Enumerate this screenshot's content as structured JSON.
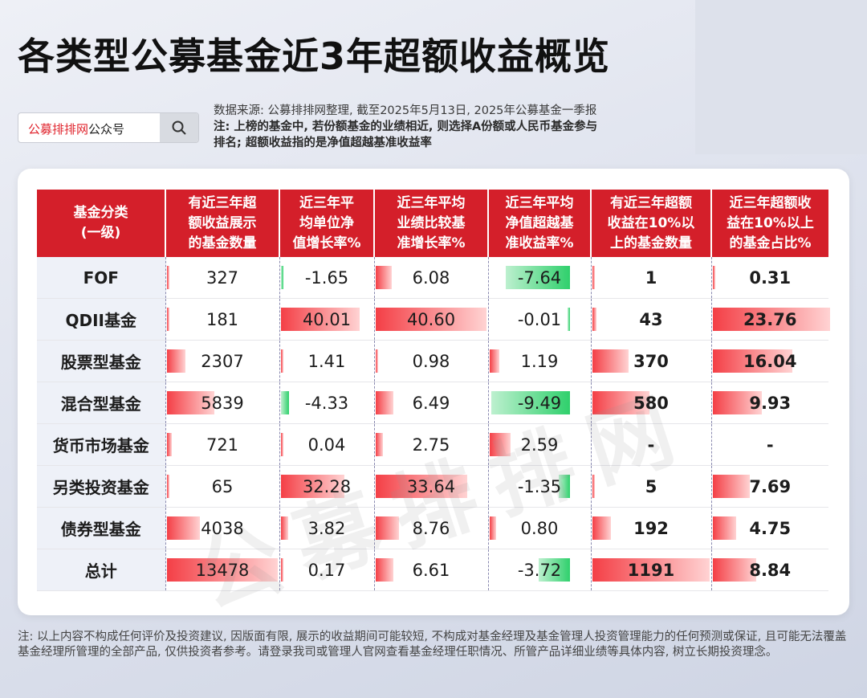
{
  "title": "各类型公募基金近3年超额收益概览",
  "search": {
    "brand_red": "公募排排网",
    "brand_rest": "公众号",
    "icon": "search-icon"
  },
  "info": {
    "source": "数据来源: 公募排排网整理, 截至2025年5月13日, 2025年公募基金一季报",
    "note_line1": "注: 上榜的基金中, 若份额基金的业绩相近, 则选择A份额或人民币基金参与",
    "note_line2": "排名; 超额收益指的是净值超越基准收益率"
  },
  "table": {
    "headers": [
      [
        "基金分类",
        "(一级)"
      ],
      [
        "有近三年超",
        "额收益展示",
        "的基金数量"
      ],
      [
        "近三年平",
        "均单位净",
        "值增长率%"
      ],
      [
        "近三年平均",
        "业绩比较基",
        "准增长率%"
      ],
      [
        "近三年平均",
        "净值超越基",
        "准收益率%"
      ],
      [
        "有近三年超额",
        "收益在10%以",
        "上的基金数量"
      ],
      [
        "近三年超额收",
        "益在10%以上",
        "的基金占比%"
      ]
    ],
    "rows": [
      [
        "FOF",
        "327",
        "-1.65",
        "6.08",
        "-7.64",
        "1",
        "0.31"
      ],
      [
        "QDII基金",
        "181",
        "40.01",
        "40.60",
        "-0.01",
        "43",
        "23.76"
      ],
      [
        "股票型基金",
        "2307",
        "1.41",
        "0.98",
        "1.19",
        "370",
        "16.04"
      ],
      [
        "混合型基金",
        "5839",
        "-4.33",
        "6.49",
        "-9.49",
        "580",
        "9.93"
      ],
      [
        "货币市场基金",
        "721",
        "0.04",
        "2.75",
        "2.59",
        "-",
        "-"
      ],
      [
        "另类投资基金",
        "65",
        "32.28",
        "33.64",
        "-1.35",
        "5",
        "7.69"
      ],
      [
        "债券型基金",
        "4038",
        "3.82",
        "8.76",
        "0.80",
        "192",
        "4.75"
      ],
      [
        "总计",
        "13478",
        "0.17",
        "6.61",
        "-3.72",
        "1191",
        "8.84"
      ]
    ],
    "bars": [
      [
        0.02,
        -0.04,
        0.15,
        -0.81,
        0.01,
        0.01
      ],
      [
        0.01,
        1.0,
        1.0,
        -0.01,
        0.04,
        1.0
      ],
      [
        0.17,
        0.035,
        0.024,
        0.126,
        0.31,
        0.68
      ],
      [
        0.43,
        -0.11,
        0.16,
        -1.0,
        0.49,
        0.42
      ],
      [
        0.05,
        0.001,
        0.068,
        0.27,
        0,
        0
      ],
      [
        0.005,
        0.81,
        0.83,
        -0.14,
        0.004,
        0.32
      ],
      [
        0.3,
        0.095,
        0.216,
        0.084,
        0.16,
        0.2
      ],
      [
        1.0,
        0.004,
        0.163,
        -0.39,
        1.0,
        0.37
      ]
    ]
  },
  "watermark": "公募排排网",
  "footer": "注: 以上内容不构成任何评价及投资建议, 因版面有限, 展示的收益期间可能较短, 不构成对基金经理及基金管理人投资管理能力的任何预测或保证, 且可能无法覆盖基金经理所管理的全部产品, 仅供投资者参考。请登录我司或管理人官网查看基金经理任职情况、所管产品详细业绩等具体内容, 树立长期投资理念。",
  "colors": {
    "header_red": "#d41f2a",
    "bar_red": "#f43f46",
    "bar_green": "#2fd06c"
  }
}
